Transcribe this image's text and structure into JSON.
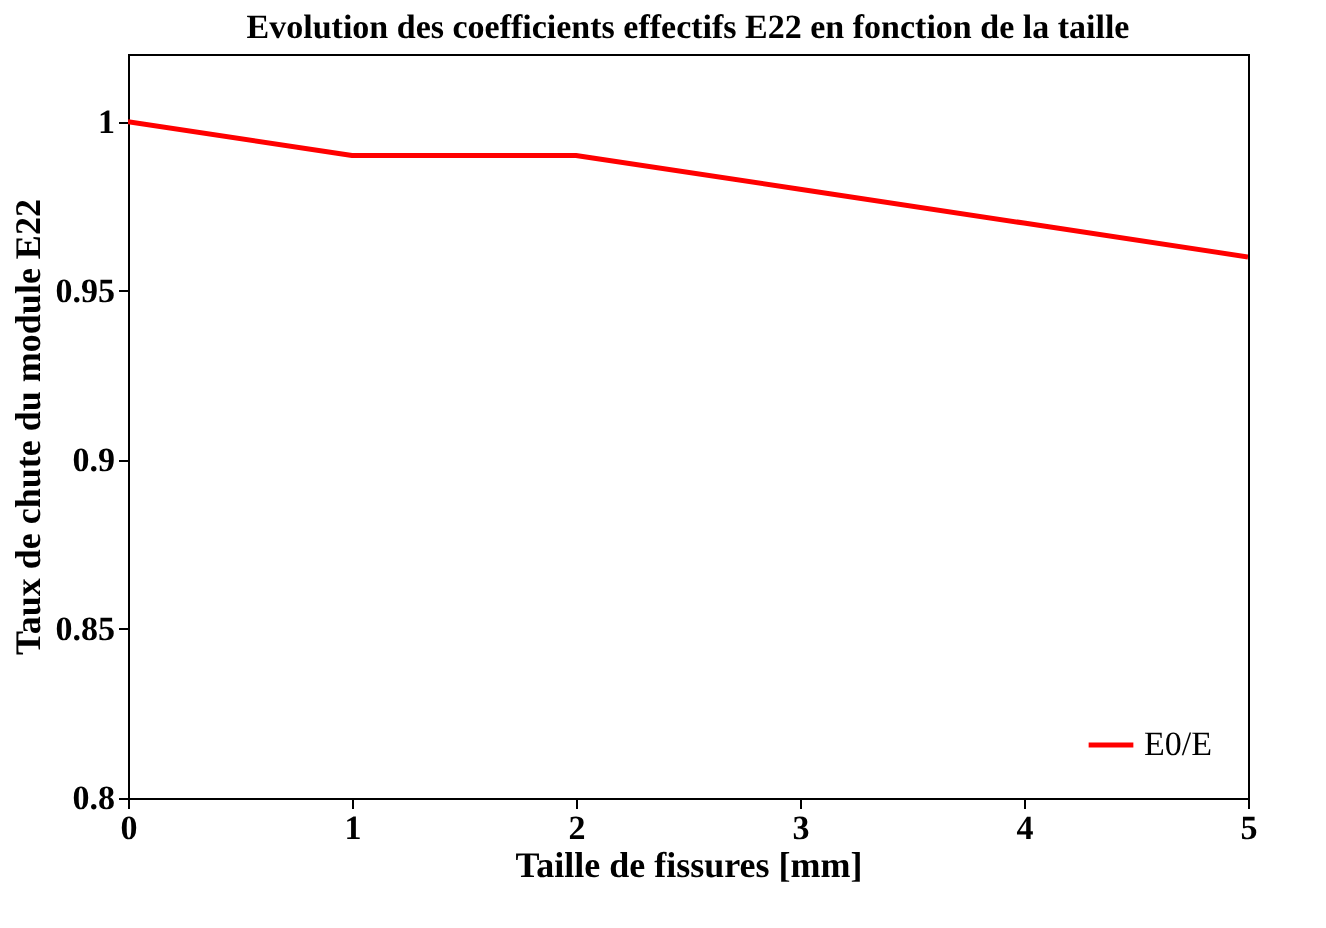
{
  "chart_data": {
    "type": "line",
    "title": "Evolution des coefficients effectifs E22 en fonction de la taille",
    "xlabel": "Taille de fissures [mm]",
    "ylabel": "Taux de chute du module E22",
    "x": [
      0,
      1,
      2,
      3,
      4,
      5
    ],
    "series": [
      {
        "name": "E0/E",
        "color": "#ff0000",
        "values": [
          1,
          0.99,
          0.99,
          0.98,
          0.97,
          0.96
        ]
      }
    ],
    "xlim": [
      0,
      5
    ],
    "xticks": [
      0,
      1,
      2,
      3,
      4,
      5
    ],
    "ylim": [
      0.8,
      1.02
    ],
    "yticks": [
      0.8,
      0.85,
      0.9,
      0.95,
      1
    ],
    "grid": false,
    "legend": "bottom right",
    "marker": "none",
    "line_style": "solid"
  }
}
